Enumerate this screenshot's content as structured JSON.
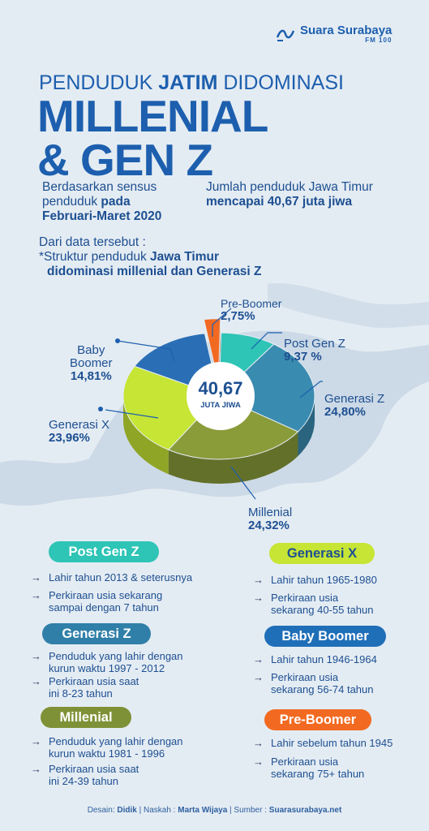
{
  "brand": {
    "name": "Suara Surabaya",
    "sub": "FM 100"
  },
  "title": {
    "line1_a": "PENDUDUK ",
    "line1_b": "JATIM",
    "line1_c": " DIDOMINASI",
    "line2": "MILLENIAL",
    "line3": "& GEN Z"
  },
  "intro": {
    "left_a": "Berdasarkan sensus",
    "left_b": "penduduk ",
    "left_c": "pada",
    "left_d": "Februari-Maret 2020",
    "right_a": "Jumlah penduduk Jawa Timur",
    "right_b": "mencapai 40,67 juta jiwa",
    "note_a": "Dari data tersebut :",
    "note_b": "*Struktur penduduk ",
    "note_c": "Jawa Timur",
    "note_d": "didominasi millenial dan Generasi Z"
  },
  "chart_data": {
    "type": "pie",
    "center_value": "40,67",
    "center_unit": "JUTA JIWA",
    "slices": [
      {
        "name": "Pre-Boomer",
        "value": 2.75,
        "label": "2,75%",
        "color": "#f26a21"
      },
      {
        "name": "Post Gen Z",
        "value": 9.37,
        "label": "9,37 %",
        "color": "#2ec4b6"
      },
      {
        "name": "Generasi Z",
        "value": 24.8,
        "label": "24,80%",
        "color": "#3a8bb0"
      },
      {
        "name": "Millenial",
        "value": 24.32,
        "label": "24,32%",
        "color": "#8a9b3a"
      },
      {
        "name": "Generasi X",
        "value": 23.96,
        "label": "23,96%",
        "color": "#c6e534"
      },
      {
        "name": "Baby Boomer",
        "value": 14.81,
        "label": "14,81%",
        "color": "#2a6fb5"
      }
    ]
  },
  "labels": {
    "pre_boomer": "Pre-Boomer",
    "post_gen_z": "Post Gen Z",
    "gen_z": "Generasi Z",
    "millenial": "Millenial",
    "gen_x": "Generasi X",
    "baby_a": "Baby",
    "baby_b": "Boomer"
  },
  "colors": {
    "post_gen_z": "#2ec4b6",
    "gen_x": "#c6e534",
    "gen_z": "#2f7fa8",
    "baby_boomer": "#1f6fb8",
    "millenial": "#7f9136",
    "pre_boomer": "#f26a21"
  },
  "legend": {
    "post_gen_z": {
      "title": "Post Gen Z",
      "b1": "Lahir tahun 2013 & seterusnya",
      "b2a": "Perkiraan usia sekarang",
      "b2b": "sampai dengan 7 tahun"
    },
    "gen_x": {
      "title": "Generasi X",
      "b1": "Lahir tahun 1965-1980",
      "b2a": "Perkiraan usia",
      "b2b": "sekarang 40-55 tahun"
    },
    "gen_z": {
      "title": "Generasi Z",
      "b1a": "Penduduk yang lahir dengan",
      "b1b": "kurun waktu 1997 - 2012",
      "b2a": "Perkiraan usia saat",
      "b2b": "ini 8-23 tahun"
    },
    "baby_boomer": {
      "title": "Baby Boomer",
      "b1": "Lahir tahun 1946-1964",
      "b2a": "Perkiraan usia",
      "b2b": "sekarang 56-74 tahun"
    },
    "millenial": {
      "title": "Millenial",
      "b1a": "Penduduk yang lahir dengan",
      "b1b": "kurun waktu 1981 - 1996",
      "b2a": "Perkiraan usia saat",
      "b2b": "ini 24-39 tahun"
    },
    "pre_boomer": {
      "title": "Pre-Boomer",
      "b1": "Lahir sebelum tahun 1945",
      "b2a": "Perkiraan usia",
      "b2b": "sekarang 75+ tahun"
    }
  },
  "footer": {
    "desain_label": "Desain: ",
    "desain": "Didik",
    "naskah_label": " | Naskah : ",
    "naskah": "Marta Wijaya",
    "sumber_label": " | Sumber : ",
    "sumber": "Suarasurabaya.net"
  }
}
